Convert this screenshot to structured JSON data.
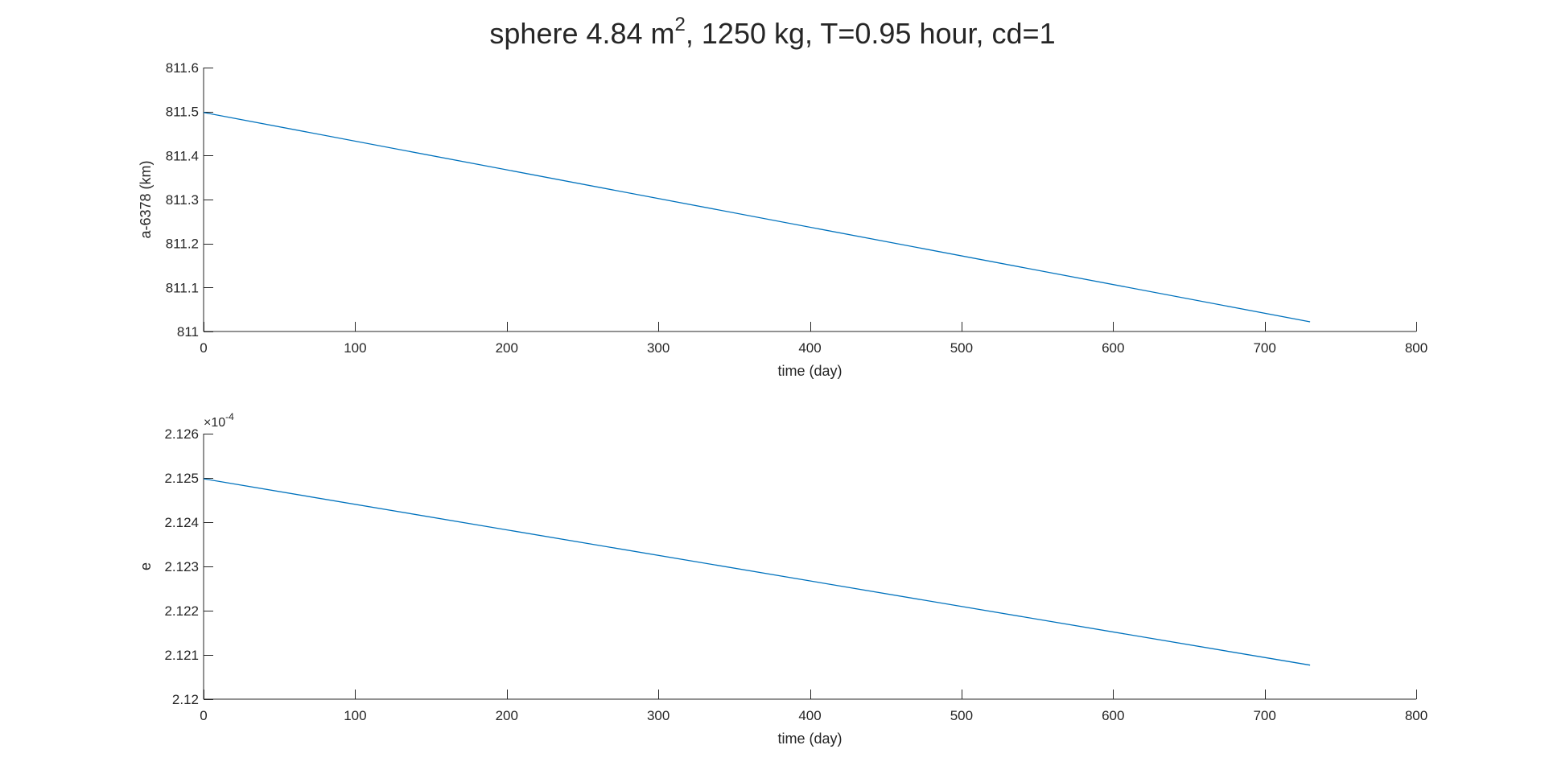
{
  "figure_title": {
    "prefix": "sphere 4.84 m",
    "superscript": "2",
    "suffix": ", 1250 kg, T=0.95 hour, cd=1"
  },
  "colors": {
    "series": "#0072BD",
    "axis": "#262626"
  },
  "chart_data": [
    {
      "type": "line",
      "xlabel": "time (day)",
      "ylabel": "a-6378 (km)",
      "xlim": [
        0,
        800
      ],
      "ylim": [
        811,
        811.6
      ],
      "xticks": [
        0,
        100,
        200,
        300,
        400,
        500,
        600,
        700,
        800
      ],
      "xtick_labels": [
        "0",
        "100",
        "200",
        "300",
        "400",
        "500",
        "600",
        "700",
        "800"
      ],
      "yticks": [
        811,
        811.1,
        811.2,
        811.3,
        811.4,
        811.5,
        811.6
      ],
      "ytick_labels": [
        "811",
        "811.1",
        "811.2",
        "811.3",
        "811.4",
        "811.5",
        "811.6"
      ],
      "exponent_label": "",
      "grid": false,
      "series": [
        {
          "x": [
            0,
            730
          ],
          "y": [
            811.498,
            811.022
          ]
        }
      ]
    },
    {
      "type": "line",
      "xlabel": "time (day)",
      "ylabel": "e",
      "xlim": [
        0,
        800
      ],
      "ylim": [
        2.12,
        2.126
      ],
      "xticks": [
        0,
        100,
        200,
        300,
        400,
        500,
        600,
        700,
        800
      ],
      "xtick_labels": [
        "0",
        "100",
        "200",
        "300",
        "400",
        "500",
        "600",
        "700",
        "800"
      ],
      "yticks": [
        2.12,
        2.121,
        2.122,
        2.123,
        2.124,
        2.125,
        2.126
      ],
      "ytick_labels": [
        "2.12",
        "2.121",
        "2.122",
        "2.123",
        "2.124",
        "2.125",
        "2.126"
      ],
      "exponent_label": "×10",
      "exponent_power": "-4",
      "grid": false,
      "series": [
        {
          "x": [
            0,
            730
          ],
          "y": [
            2.12498,
            2.12077
          ]
        }
      ]
    }
  ]
}
